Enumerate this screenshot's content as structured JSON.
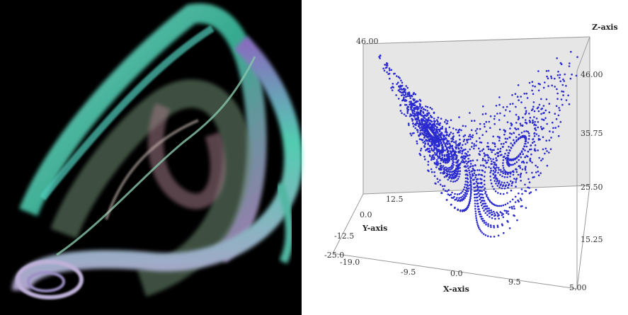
{
  "plot": {
    "z_axis": {
      "label": "Z-axis",
      "ticks": [
        "46.00",
        "35.75",
        "25.50",
        "15.25",
        "5.00"
      ]
    },
    "x_axis": {
      "label": "X-axis",
      "ticks": [
        "-19.0",
        "-9.5",
        "0.0",
        "9.5"
      ]
    },
    "y_axis": {
      "label": "Y-axis",
      "ticks": [
        "-25.0",
        "-12.5",
        "0.0",
        "12.5"
      ]
    },
    "back_top": "46.00"
  }
}
